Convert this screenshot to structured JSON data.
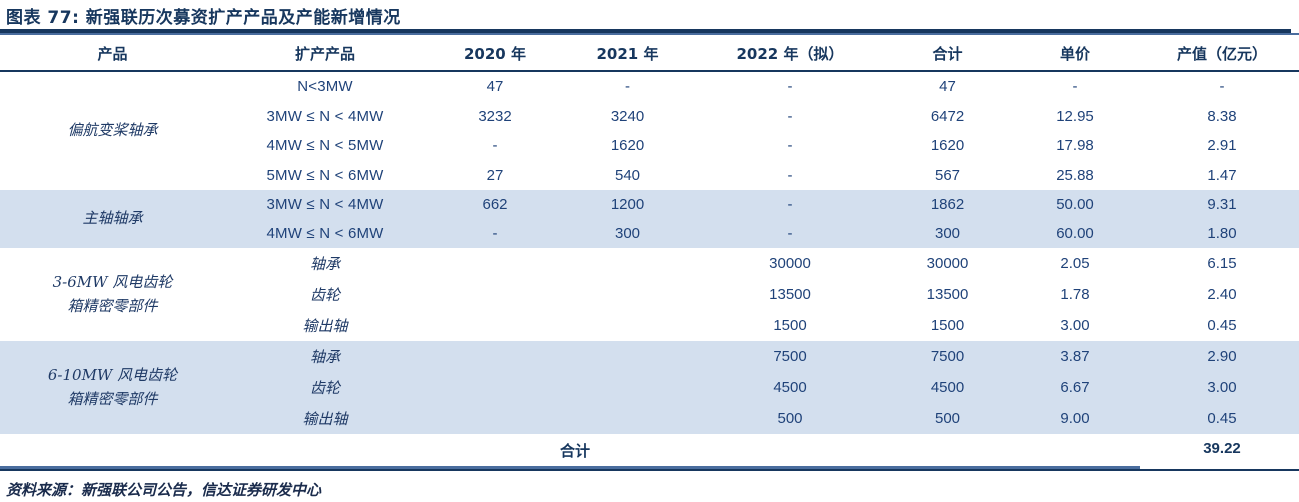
{
  "figure": {
    "title": "图表 77: 新强联历次募资扩产产品及产能新增情况",
    "source": "资料来源：新强联公司公告，信达证券研发中心"
  },
  "colors": {
    "navy": "#17375E",
    "body_text": "#1F4279",
    "band_blue": "#D3DFEE",
    "accent_blue": "#4A6D9E"
  },
  "table": {
    "headers": {
      "product": "产品",
      "expansion_product": "扩产产品",
      "y2020": "2020 年",
      "y2021": "2021 年",
      "y2022": "2022 年（拟）",
      "total": "合计",
      "unit_price": "单价",
      "output_value": "产值（亿元）"
    },
    "groups": [
      {
        "product_lines": [
          "偏航变桨轴承",
          ""
        ],
        "rows": [
          {
            "item": "N<3MW",
            "y2020": "47",
            "y2021": "-",
            "y2022": "-",
            "total": "47",
            "price": "-",
            "value": "-"
          },
          {
            "item": "3MW ≤ N < 4MW",
            "y2020": "3232",
            "y2021": "3240",
            "y2022": "-",
            "total": "6472",
            "price": "12.95",
            "value": "8.38"
          },
          {
            "item": "4MW ≤ N < 5MW",
            "y2020": "-",
            "y2021": "1620",
            "y2022": "-",
            "total": "1620",
            "price": "17.98",
            "value": "2.91"
          },
          {
            "item": "5MW ≤ N < 6MW",
            "y2020": "27",
            "y2021": "540",
            "y2022": "-",
            "total": "567",
            "price": "25.88",
            "value": "1.47"
          }
        ]
      },
      {
        "product_lines": [
          "主轴轴承",
          ""
        ],
        "rows": [
          {
            "item": "3MW ≤ N < 4MW",
            "y2020": "662",
            "y2021": "1200",
            "y2022": "-",
            "total": "1862",
            "price": "50.00",
            "value": "9.31"
          },
          {
            "item": "4MW ≤ N < 6MW",
            "y2020": "-",
            "y2021": "300",
            "y2022": "-",
            "total": "300",
            "price": "60.00",
            "value": "1.80"
          }
        ]
      },
      {
        "product_lines": [
          "3-6MW 风电齿轮",
          "箱精密零部件"
        ],
        "rows": [
          {
            "item": "轴承",
            "y2020": "",
            "y2021": "",
            "y2022": "30000",
            "total": "30000",
            "price": "2.05",
            "value": "6.15"
          },
          {
            "item": "齿轮",
            "y2020": "",
            "y2021": "",
            "y2022": "13500",
            "total": "13500",
            "price": "1.78",
            "value": "2.40"
          },
          {
            "item": "输出轴",
            "y2020": "",
            "y2021": "",
            "y2022": "1500",
            "total": "1500",
            "price": "3.00",
            "value": "0.45"
          }
        ]
      },
      {
        "product_lines": [
          "6-10MW 风电齿轮",
          "箱精密零部件"
        ],
        "rows": [
          {
            "item": "轴承",
            "y2020": "",
            "y2021": "",
            "y2022": "7500",
            "total": "7500",
            "price": "3.87",
            "value": "2.90"
          },
          {
            "item": "齿轮",
            "y2020": "",
            "y2021": "",
            "y2022": "4500",
            "total": "4500",
            "price": "6.67",
            "value": "3.00"
          },
          {
            "item": "输出轴",
            "y2020": "",
            "y2021": "",
            "y2022": "500",
            "total": "500",
            "price": "9.00",
            "value": "0.45"
          }
        ]
      }
    ],
    "total_row": {
      "label": "合计",
      "value": "39.22"
    }
  }
}
